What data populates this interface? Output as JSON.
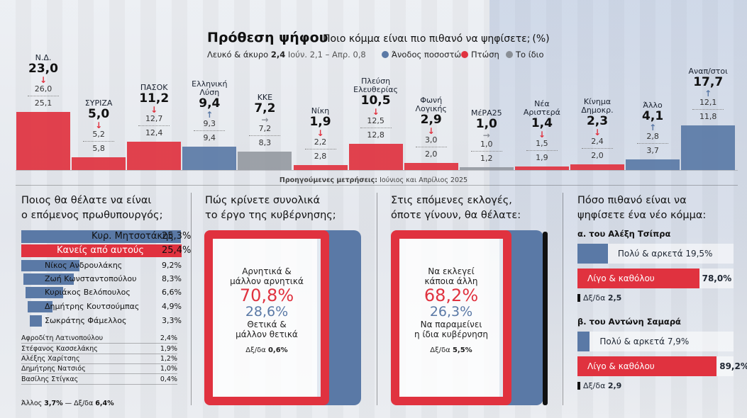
{
  "header": {
    "title": "Πρόθεση ψήφου",
    "subtitle": "Ποιο κόμμα είναι πιο πιθανό να ψηφίσετε;",
    "unit": "(%)",
    "blank_label": "Λευκό & άκυρο",
    "blank_value": "2,4",
    "blank_prev": "Ιούν. 2,1 – Απρ. 0,8"
  },
  "legend": [
    {
      "label": "Άνοδος ποσοστών",
      "color": "#5a79a6"
    },
    {
      "label": "Πτώση",
      "color": "#e0323f"
    },
    {
      "label": "Το ίδιο",
      "color": "#8a8f96"
    }
  ],
  "colors": {
    "red": "#e0323f",
    "blue": "#5a79a6",
    "grey": "#8a8f96"
  },
  "chart_data": [
    {
      "type": "bar",
      "title": "Πρόθεση ψήφου",
      "categories": [
        "Ν.Δ.",
        "ΣΥΡΙΖΑ",
        "ΠΑΣΟΚ",
        "Ελληνική Λύση",
        "ΚΚΕ",
        "Νίκη",
        "Πλεύση Ελευθερίας",
        "Φωνή Λογικής",
        "ΜέΡΑ25",
        "Νέα Αριστερά",
        "Κίνημα Δημοκρ.",
        "Άλλο",
        "Αναπ/στοι"
      ],
      "series": [
        {
          "name": "",
          "values": [
            23.0,
            5.0,
            11.2,
            9.4,
            7.2,
            1.9,
            10.5,
            2.9,
            1.0,
            1.4,
            2.3,
            4.1,
            17.7
          ]
        },
        {
          "name": "Ιούνιος",
          "values": [
            26.0,
            5.2,
            12.7,
            9.3,
            7.2,
            2.2,
            12.5,
            3.0,
            1.0,
            1.5,
            2.4,
            2.8,
            12.1
          ]
        },
        {
          "name": "Απρίλιος 2025",
          "values": [
            25.1,
            5.8,
            12.4,
            9.4,
            8.3,
            2.8,
            12.8,
            2.0,
            1.2,
            1.9,
            2.0,
            3.7,
            11.8
          ]
        }
      ],
      "trend": [
        "down",
        "down",
        "down",
        "up",
        "same",
        "down",
        "down",
        "down",
        "same",
        "down",
        "down",
        "up",
        "up"
      ],
      "display": {
        "values": [
          "23,0",
          "5,0",
          "11,2",
          "9,4",
          "7,2",
          "1,9",
          "10,5",
          "2,9",
          "1,0",
          "1,4",
          "2,3",
          "4,1",
          "17,7"
        ],
        "june": [
          "26,0",
          "5,2",
          "12,7",
          "9,3",
          "7,2",
          "2,2",
          "12,5",
          "3,0",
          "1,0",
          "1,5",
          "2,4",
          "2,8",
          "12,1"
        ],
        "april": [
          "25,1",
          "5,8",
          "12,4",
          "9,4",
          "8,3",
          "2,8",
          "12,8",
          "2,0",
          "1,2",
          "1,9",
          "2,0",
          "3,7",
          "11,8"
        ]
      },
      "name_lines": [
        [
          "Ν.Δ."
        ],
        [
          "ΣΥΡΙΖΑ"
        ],
        [
          "ΠΑΣΟΚ"
        ],
        [
          "Ελληνική",
          "Λύση"
        ],
        [
          "ΚΚΕ"
        ],
        [
          "Νίκη"
        ],
        [
          "Πλεύση",
          "Ελευθερίας"
        ],
        [
          "Φωνή",
          "Λογικής"
        ],
        [
          "ΜέΡΑ25"
        ],
        [
          "Νέα",
          "Αριστερά"
        ],
        [
          "Κίνημα",
          "Δημοκρ."
        ],
        [
          "Άλλο"
        ],
        [
          "Αναπ/στοι"
        ]
      ],
      "note_prefix": "Προηγούμενες μετρήσεις:",
      "note_rest": "Ιούνιος και Απρίλιος 2025"
    },
    {
      "type": "bar",
      "title": "Ποιος θα θέλατε να είναι ο επόμενος πρωθυπουργός;",
      "categories": [
        "Κυρ. Μητσοτάκης",
        "Κανείς από αυτούς",
        "Νίκος Ανδρουλάκης",
        "Ζωή Κωνσταντοπούλου",
        "Κυριάκος Βελόπουλος",
        "Δημήτρης Κουτσούμπας",
        "Σωκράτης Φάμελλος",
        "Αφροδίτη Λατινοπούλου",
        "Στέφανος Κασσελάκης",
        "Αλέξης Χαρίτσης",
        "Δημήτρης Νατσιός",
        "Βασίλης Στίγκας"
      ],
      "values": [
        25.3,
        25.4,
        9.2,
        8.3,
        6.6,
        4.9,
        3.3,
        2.4,
        1.9,
        1.2,
        1.0,
        0.4
      ],
      "display": [
        "25,3%",
        "25,4%",
        "9,2%",
        "8,3%",
        "6,6%",
        "4,9%",
        "3,3%",
        "2,4%",
        "1,9%",
        "1,2%",
        "1,0%",
        "0,4%"
      ],
      "footer": "Άλλος 3,7% — Δξ/δα 6,4%"
    },
    {
      "type": "bar",
      "title": "Πώς κρίνετε συνολικά το έργο της κυβέρνησης;",
      "categories": [
        "Αρνητικά & μάλλον αρνητικά",
        "Θετικά & μάλλον θετικά",
        "Δξ/δα"
      ],
      "values": [
        70.8,
        28.6,
        0.6
      ],
      "display": [
        "70,8%",
        "28,6%",
        "0,6%"
      ]
    },
    {
      "type": "bar",
      "title": "Στις επόμενες εκλογές, όποτε γίνουν, θα θέλατε:",
      "categories": [
        "Να εκλεγεί κάποια άλλη",
        "Να παραμείνει η ίδια κυβέρνηση",
        "Δξ/δα"
      ],
      "values": [
        68.2,
        26.3,
        5.5
      ],
      "display": [
        "68,2%",
        "26,3%",
        "5,5%"
      ]
    },
    {
      "type": "bar",
      "title": "Πόσο πιθανό είναι να ψηφίσετε ένα νέο κόμμα:",
      "groups": [
        {
          "name": "α. του Αλέξη Τσίπρα",
          "categories": [
            "Πολύ & αρκετά",
            "Λίγο & καθόλου",
            "Δξ/δα"
          ],
          "values": [
            19.5,
            78.0,
            2.5
          ],
          "display": [
            "19,5%",
            "78,0%",
            "2,5"
          ]
        },
        {
          "name": "β. του Αντώνη Σαμαρά",
          "categories": [
            "Πολύ & αρκετά",
            "Λίγο & καθόλου",
            "Δξ/δα"
          ],
          "values": [
            7.9,
            89.2,
            2.9
          ],
          "display": [
            "7,9%",
            "89,2%",
            "2,9"
          ]
        }
      ]
    }
  ],
  "pm": {
    "title_l1": "Ποιος θα θέλατε να είναι",
    "title_l2": "ο επόμενος πρωθυπουργός;",
    "footer_a": "Άλλος",
    "footer_av": "3,7%",
    "footer_b": "— Δξ/δα",
    "footer_bv": "6,4%"
  },
  "gov": {
    "title_l1": "Πώς κρίνετε συνολικά",
    "title_l2": "το έργο της κυβέρνησης;",
    "neg_l1": "Αρνητικά &",
    "neg_l2": "μάλλον αρνητικά",
    "neg_val": "70,8%",
    "pos_val": "28,6%",
    "pos_l1": "Θετικά &",
    "pos_l2": "μάλλον θετικά",
    "dk_label": "Δξ/δα",
    "dk_val": "0,6%"
  },
  "elect": {
    "title_l1": "Στις επόμενες εκλογές,",
    "title_l2": "όποτε γίνουν, θα θέλατε:",
    "other_l1": "Να εκλεγεί",
    "other_l2": "κάποια άλλη",
    "other_val": "68,2%",
    "same_val": "26,3%",
    "same_l1": "Να παραμείνει",
    "same_l2": "η ίδια κυβέρνηση",
    "dk_label": "Δξ/δα",
    "dk_val": "5,5%"
  },
  "newparty": {
    "title_l1": "Πόσο πιθανό είναι να",
    "title_l2": "ψηφίσετε ένα νέο κόμμα:",
    "a_title": "α. του Αλέξη Τσίπρα",
    "a_pos": "Πολύ & αρκετά",
    "a_pos_val": "19,5%",
    "a_neg": "Λίγο & καθόλου",
    "a_neg_val": "78,0%",
    "a_dk": "Δξ/δα",
    "a_dk_val": "2,5",
    "b_title": "β. του Αντώνη Σαμαρά",
    "b_pos": "Πολύ & αρκετά",
    "b_pos_val": "7,9%",
    "b_neg": "Λίγο & καθόλου",
    "b_neg_val": "89,2%",
    "b_dk": "Δξ/δα",
    "b_dk_val": "2,9"
  }
}
